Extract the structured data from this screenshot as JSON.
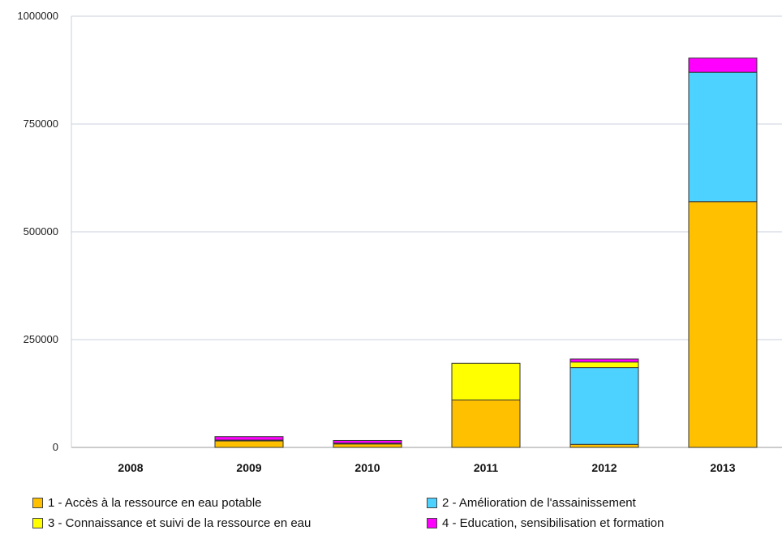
{
  "chart_data": {
    "type": "bar",
    "stacked": true,
    "categories": [
      "2008",
      "2009",
      "2010",
      "2011",
      "2012",
      "2013"
    ],
    "ylim": [
      0,
      1000000
    ],
    "yticks": [
      "0",
      "250000",
      "500000",
      "750000",
      "1000000"
    ],
    "grid": true,
    "legend_position": "bottom",
    "series": [
      {
        "name": "1 - Accès à la ressource en eau potable",
        "color": "#ffc000",
        "values": [
          0,
          15000,
          8000,
          110000,
          7000,
          570000
        ]
      },
      {
        "name": "2 - Amélioration de l'assainissement",
        "color": "#4dd2ff",
        "values": [
          0,
          0,
          0,
          0,
          178000,
          300000
        ]
      },
      {
        "name": "3 - Connaissance et suivi de la ressource en eau",
        "color": "#ffff00",
        "values": [
          0,
          2000,
          2000,
          85000,
          13000,
          0
        ]
      },
      {
        "name": "4 - Education, sensibilisation et formation",
        "color": "#ff00ff",
        "values": [
          0,
          8000,
          6000,
          0,
          7000,
          33000
        ]
      }
    ]
  }
}
